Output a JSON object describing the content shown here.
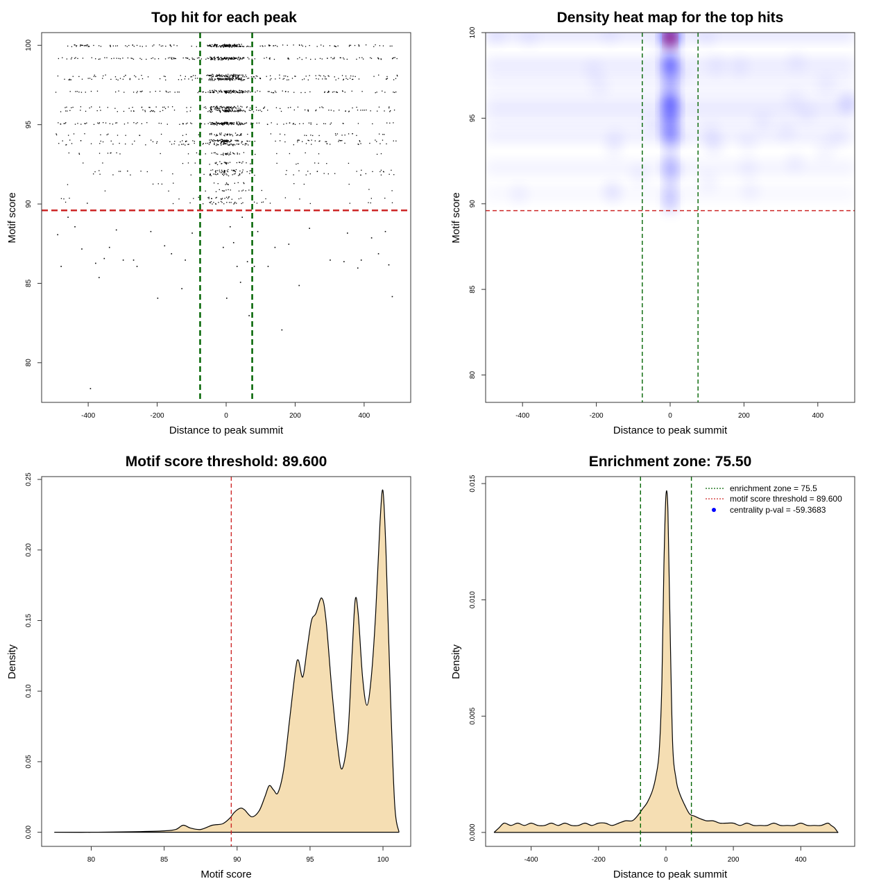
{
  "colors": {
    "green_line": "#006400",
    "red_line": "#cd2626",
    "density_fill": "#f5deb3",
    "heat_low": "#ffffff",
    "heat_mid": "#0000ff",
    "heat_high": "#ff0000",
    "legend_blue": "#0000ff"
  },
  "chart_data": [
    {
      "id": "scatter",
      "type": "scatter",
      "title": "Top hit for each peak",
      "xlabel": "Distance to peak summit",
      "ylabel": "Motif score",
      "xlim": [
        -535,
        535
      ],
      "ylim": [
        77.5,
        100.8
      ],
      "xticks": [
        -400,
        -200,
        0,
        200,
        400
      ],
      "yticks": [
        80,
        85,
        90,
        95,
        100
      ],
      "vlines": [
        -75.5,
        75.5
      ],
      "hline": 89.6,
      "score_levels": [
        {
          "y": 100.0,
          "density": 1.0
        },
        {
          "y": 99.2,
          "density": 0.9
        },
        {
          "y": 98.1,
          "density": 0.6
        },
        {
          "y": 97.9,
          "density": 0.7
        },
        {
          "y": 97.1,
          "density": 0.75
        },
        {
          "y": 96.1,
          "density": 0.45
        },
        {
          "y": 95.9,
          "density": 0.6
        },
        {
          "y": 95.1,
          "density": 0.8
        },
        {
          "y": 94.4,
          "density": 0.3
        },
        {
          "y": 94.0,
          "density": 0.5
        },
        {
          "y": 93.8,
          "density": 0.35
        },
        {
          "y": 93.2,
          "density": 0.2
        },
        {
          "y": 92.6,
          "density": 0.15
        },
        {
          "y": 92.1,
          "density": 0.25
        },
        {
          "y": 91.9,
          "density": 0.2
        },
        {
          "y": 91.3,
          "density": 0.08
        },
        {
          "y": 90.9,
          "density": 0.08
        },
        {
          "y": 90.4,
          "density": 0.12
        },
        {
          "y": 90.1,
          "density": 0.15
        }
      ],
      "outliers": [
        {
          "x": -490,
          "y": 88.1
        },
        {
          "x": -480,
          "y": 86.1
        },
        {
          "x": -460,
          "y": 89.2
        },
        {
          "x": -440,
          "y": 88.6
        },
        {
          "x": -420,
          "y": 87.2
        },
        {
          "x": -380,
          "y": 86.3
        },
        {
          "x": -370,
          "y": 85.4
        },
        {
          "x": -355,
          "y": 86.6
        },
        {
          "x": -340,
          "y": 87.3
        },
        {
          "x": -320,
          "y": 88.4
        },
        {
          "x": -300,
          "y": 86.5
        },
        {
          "x": -260,
          "y": 86.1
        },
        {
          "x": -220,
          "y": 88.3
        },
        {
          "x": -200,
          "y": 84.1
        },
        {
          "x": -180,
          "y": 87.4
        },
        {
          "x": -160,
          "y": 86.9
        },
        {
          "x": -130,
          "y": 84.7
        },
        {
          "x": -120,
          "y": 86.5
        },
        {
          "x": -100,
          "y": 88.2
        },
        {
          "x": 0,
          "y": 84.1
        },
        {
          "x": -10,
          "y": 87.3
        },
        {
          "x": 10,
          "y": 88.6
        },
        {
          "x": 20,
          "y": 87.6
        },
        {
          "x": 30,
          "y": 86.1
        },
        {
          "x": 40,
          "y": 85.1
        },
        {
          "x": 45,
          "y": 89.2
        },
        {
          "x": 60,
          "y": 86.4
        },
        {
          "x": 80,
          "y": 86.1
        },
        {
          "x": 90,
          "y": 88.3
        },
        {
          "x": 120,
          "y": 86.1
        },
        {
          "x": 140,
          "y": 87.3
        },
        {
          "x": 160,
          "y": 82.1
        },
        {
          "x": 180,
          "y": 87.5
        },
        {
          "x": 210,
          "y": 84.9
        },
        {
          "x": 240,
          "y": 88.5
        },
        {
          "x": 300,
          "y": 86.5
        },
        {
          "x": 340,
          "y": 86.4
        },
        {
          "x": 380,
          "y": 86.0
        },
        {
          "x": 390,
          "y": 86.5
        },
        {
          "x": 420,
          "y": 87.9
        },
        {
          "x": 440,
          "y": 86.9
        },
        {
          "x": 460,
          "y": 88.3
        },
        {
          "x": 470,
          "y": 86.2
        },
        {
          "x": 480,
          "y": 84.2
        },
        {
          "x": 65,
          "y": 83.0
        },
        {
          "x": -395,
          "y": 78.4
        },
        {
          "x": -270,
          "y": 86.5
        },
        {
          "x": 350,
          "y": 88.2
        }
      ]
    },
    {
      "id": "heatmap",
      "type": "heatmap",
      "title": "Density heat map for the top hits",
      "xlabel": "Distance to peak summit",
      "ylabel": "Motif score",
      "xlim": [
        -500,
        500
      ],
      "ylim": [
        78.4,
        100
      ],
      "xticks": [
        -400,
        -200,
        0,
        200,
        400
      ],
      "yticks": [
        80,
        85,
        90,
        95,
        100
      ],
      "vlines": [
        -75.5,
        75.5
      ],
      "hline": 89.6,
      "hotspots": [
        {
          "x": 0,
          "y": 99.8,
          "intensity": 1.0
        },
        {
          "x": 0,
          "y": 98.1,
          "intensity": 0.7
        },
        {
          "x": 0,
          "y": 95.9,
          "intensity": 0.72
        },
        {
          "x": 0,
          "y": 95.1,
          "intensity": 0.55
        },
        {
          "x": 0,
          "y": 94.1,
          "intensity": 0.5
        },
        {
          "x": 0,
          "y": 97.1,
          "intensity": 0.3
        },
        {
          "x": 0,
          "y": 92.1,
          "intensity": 0.2
        },
        {
          "x": 0,
          "y": 90.3,
          "intensity": 0.12
        }
      ]
    },
    {
      "id": "score-density",
      "type": "area",
      "title": "Motif score threshold: 89.600",
      "xlabel": "Motif score",
      "ylabel": "Density",
      "xlim": [
        76.6,
        101.9
      ],
      "ylim": [
        -0.01,
        0.252
      ],
      "xticks": [
        80,
        85,
        90,
        95,
        100
      ],
      "yticks": [
        0.0,
        0.05,
        0.1,
        0.15,
        0.2,
        0.25
      ],
      "ytick_labels": [
        "0.00",
        "0.05",
        "0.10",
        "0.15",
        "0.20",
        "0.25"
      ],
      "vline": 89.6,
      "x": [
        77.5,
        80,
        83,
        85,
        85.8,
        86.3,
        86.8,
        87.5,
        88.3,
        89,
        89.5,
        89.8,
        90.2,
        90.5,
        91.0,
        91.5,
        91.9,
        92.2,
        92.5,
        92.8,
        93.2,
        93.6,
        94.0,
        94.2,
        94.5,
        94.8,
        95.1,
        95.4,
        95.8,
        96.1,
        96.5,
        96.9,
        97.2,
        97.6,
        97.9,
        98.1,
        98.3,
        98.6,
        98.9,
        99.2,
        99.5,
        99.8,
        100.0,
        100.2,
        100.5,
        100.8,
        101.1
      ],
      "y": [
        0.0,
        0.0,
        0.0004,
        0.001,
        0.002,
        0.005,
        0.003,
        0.002,
        0.005,
        0.006,
        0.01,
        0.014,
        0.017,
        0.016,
        0.011,
        0.015,
        0.025,
        0.033,
        0.03,
        0.028,
        0.045,
        0.08,
        0.115,
        0.122,
        0.11,
        0.13,
        0.15,
        0.155,
        0.166,
        0.15,
        0.1,
        0.06,
        0.045,
        0.07,
        0.13,
        0.165,
        0.155,
        0.11,
        0.09,
        0.11,
        0.155,
        0.22,
        0.242,
        0.2,
        0.1,
        0.02,
        0.0
      ]
    },
    {
      "id": "distance-density",
      "type": "area",
      "title": "Enrichment zone: 75.50",
      "xlabel": "Distance to peak summit",
      "ylabel": "Density",
      "xlim": [
        -535,
        560
      ],
      "ylim": [
        -0.0006,
        0.0153
      ],
      "xticks": [
        -400,
        -200,
        0,
        200,
        400
      ],
      "yticks": [
        0.0,
        0.005,
        0.01,
        0.015
      ],
      "ytick_labels": [
        "0.000",
        "0.005",
        "0.010",
        "0.015"
      ],
      "vlines": [
        -75.5,
        75.5
      ],
      "x": [
        -510,
        -495,
        -480,
        -460,
        -440,
        -420,
        -400,
        -380,
        -360,
        -340,
        -320,
        -300,
        -280,
        -260,
        -240,
        -220,
        -200,
        -180,
        -160,
        -140,
        -120,
        -100,
        -85,
        -70,
        -55,
        -40,
        -30,
        -20,
        -12,
        -6,
        0,
        6,
        12,
        20,
        30,
        40,
        55,
        70,
        85,
        100,
        120,
        140,
        160,
        180,
        200,
        220,
        240,
        260,
        280,
        300,
        320,
        340,
        360,
        380,
        400,
        420,
        440,
        460,
        480,
        490,
        500,
        510
      ],
      "y": [
        0.0,
        0.0002,
        0.0004,
        0.0003,
        0.0004,
        0.0003,
        0.0004,
        0.0003,
        0.0003,
        0.0004,
        0.0003,
        0.0004,
        0.0003,
        0.0003,
        0.0004,
        0.0003,
        0.0004,
        0.0004,
        0.0003,
        0.0004,
        0.0005,
        0.0005,
        0.0007,
        0.001,
        0.0013,
        0.0018,
        0.0024,
        0.0035,
        0.0065,
        0.0115,
        0.0145,
        0.0138,
        0.009,
        0.0038,
        0.0023,
        0.0017,
        0.0012,
        0.0008,
        0.0007,
        0.0006,
        0.0005,
        0.0005,
        0.0004,
        0.0004,
        0.0004,
        0.0003,
        0.0004,
        0.0003,
        0.0003,
        0.0003,
        0.0004,
        0.0003,
        0.0003,
        0.0003,
        0.0004,
        0.0003,
        0.0003,
        0.0003,
        0.0004,
        0.0003,
        0.0002,
        0.0
      ],
      "legend": [
        {
          "label": "enrichment zone = 75.5",
          "style": "green-dotted"
        },
        {
          "label": "motif score threshold = 89.600",
          "style": "red-dotted"
        },
        {
          "label": "centrality p-val = -59.3683",
          "style": "blue-dot"
        }
      ]
    }
  ]
}
